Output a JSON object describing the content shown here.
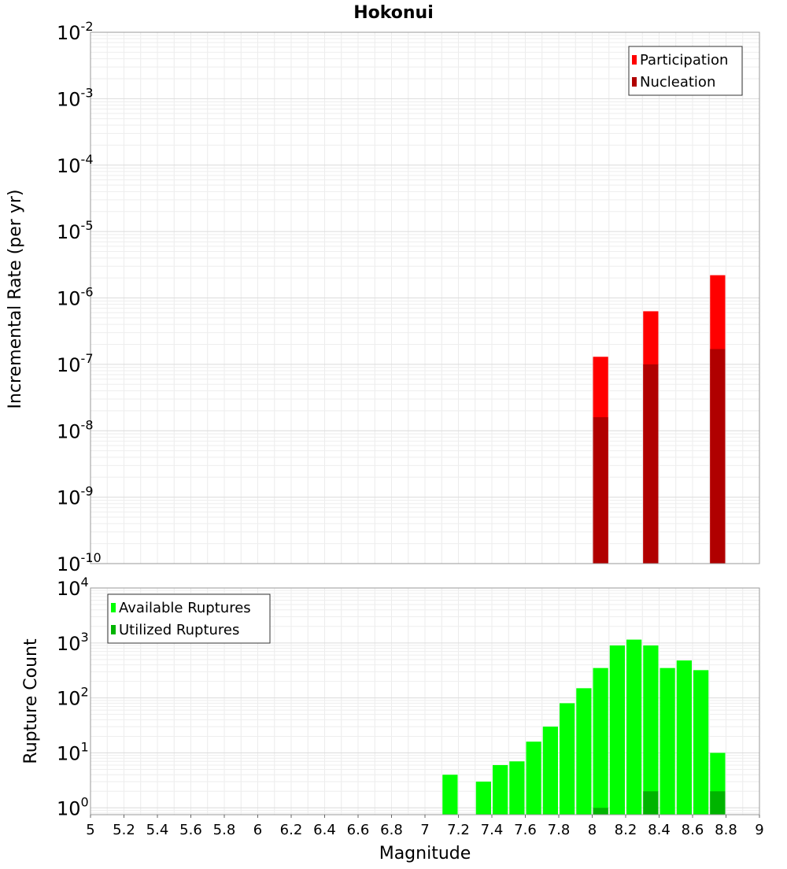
{
  "chart_data": [
    {
      "type": "bar",
      "title": "Hokonui",
      "xlabel": "",
      "ylabel": "Incremental Rate (per yr)",
      "yscale": "log",
      "ylim": [
        1e-10,
        0.01
      ],
      "xlim": [
        5,
        9
      ],
      "y_tick_exponents": [
        "-2",
        "-3",
        "-4",
        "-5",
        "-6",
        "-7",
        "-8",
        "-9",
        "-10"
      ],
      "legend_position": "top-right",
      "grid": true,
      "bar_width": 0.1,
      "series": [
        {
          "name": "Participation",
          "color": "#ff0000",
          "x": [
            8.05,
            8.35,
            8.75
          ],
          "values": [
            1.3e-07,
            6.3e-07,
            2.2e-06
          ]
        },
        {
          "name": "Nucleation",
          "color": "#b00000",
          "x": [
            8.05,
            8.35,
            8.75
          ],
          "values": [
            1.6e-08,
            1e-07,
            1.7e-07
          ]
        }
      ]
    },
    {
      "type": "bar",
      "title": "",
      "xlabel": "Magnitude",
      "ylabel": "Rupture Count",
      "yscale": "log",
      "ylim": [
        0.75,
        10000
      ],
      "xlim": [
        5,
        9
      ],
      "y_tick_exponents": [
        "4",
        "3",
        "2",
        "1",
        "0"
      ],
      "x_ticks": [
        "5",
        "5.2",
        "5.4",
        "5.6",
        "5.8",
        "6",
        "6.2",
        "6.4",
        "6.6",
        "6.8",
        "7",
        "7.2",
        "7.4",
        "7.6",
        "7.8",
        "8",
        "8.2",
        "8.4",
        "8.6",
        "8.8",
        "9"
      ],
      "legend_position": "top-left",
      "grid": true,
      "bar_width": 0.1,
      "series": [
        {
          "name": "Available Ruptures",
          "color": "#00ff00",
          "x": [
            7.15,
            7.35,
            7.45,
            7.55,
            7.65,
            7.75,
            7.85,
            7.95,
            8.05,
            8.15,
            8.25,
            8.35,
            8.45,
            8.55,
            8.65,
            8.75
          ],
          "values": [
            4,
            3,
            6,
            7,
            16,
            30,
            80,
            150,
            350,
            900,
            1150,
            900,
            350,
            480,
            320,
            10
          ]
        },
        {
          "name": "Utilized Ruptures",
          "color": "#00b400",
          "x": [
            8.05,
            8.35,
            8.75
          ],
          "values": [
            1,
            2,
            2
          ]
        }
      ]
    }
  ]
}
